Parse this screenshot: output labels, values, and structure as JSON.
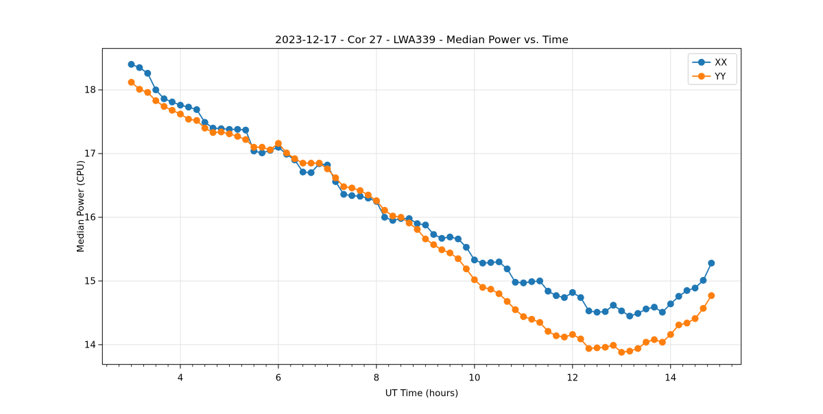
{
  "figure": {
    "background": "#ffffff",
    "grid_color": "#e2e2e2",
    "spine_color": "#000000",
    "text_color": "#000000"
  },
  "chart_data": {
    "type": "line",
    "title": "2023-12-17 - Cor 27 - LWA339 - Median Power vs. Time",
    "xlabel": "UT Time (hours)",
    "ylabel": "Median Power (CPU)",
    "grid": true,
    "legend_position": "upper right",
    "xlim": [
      2.41,
      15.44
    ],
    "ylim": [
      13.69,
      18.65
    ],
    "x_major_ticks": [
      4,
      6,
      8,
      10,
      12,
      14
    ],
    "x_minor_tick_step": 0.25,
    "y_major_ticks": [
      14,
      15,
      16,
      17,
      18
    ],
    "x": [
      3.0,
      3.167,
      3.333,
      3.5,
      3.667,
      3.833,
      4.0,
      4.167,
      4.333,
      4.5,
      4.667,
      4.833,
      5.0,
      5.167,
      5.333,
      5.5,
      5.667,
      5.833,
      6.0,
      6.167,
      6.333,
      6.5,
      6.667,
      6.833,
      7.0,
      7.167,
      7.333,
      7.5,
      7.667,
      7.833,
      8.0,
      8.167,
      8.333,
      8.5,
      8.667,
      8.833,
      9.0,
      9.167,
      9.333,
      9.5,
      9.667,
      9.833,
      10.0,
      10.167,
      10.333,
      10.5,
      10.667,
      10.833,
      11.0,
      11.167,
      11.333,
      11.5,
      11.667,
      11.833,
      12.0,
      12.167,
      12.333,
      12.5,
      12.667,
      12.833,
      13.0,
      13.167,
      13.333,
      13.5,
      13.667,
      13.833,
      14.0,
      14.167,
      14.333,
      14.5,
      14.667,
      14.833
    ],
    "series": [
      {
        "name": "XX",
        "color": "#1f77b4",
        "marker": "circle",
        "values": [
          18.4,
          18.35,
          18.26,
          18.0,
          17.86,
          17.81,
          17.76,
          17.73,
          17.69,
          17.49,
          17.4,
          17.39,
          17.38,
          17.38,
          17.37,
          17.04,
          17.01,
          17.05,
          17.1,
          16.99,
          16.9,
          16.71,
          16.7,
          16.84,
          16.82,
          16.56,
          16.36,
          16.34,
          16.33,
          16.3,
          16.25,
          16.0,
          15.95,
          15.98,
          15.98,
          15.9,
          15.88,
          15.73,
          15.67,
          15.69,
          15.66,
          15.53,
          15.33,
          15.28,
          15.29,
          15.3,
          15.19,
          14.98,
          14.97,
          14.99,
          15.0,
          14.84,
          14.77,
          14.74,
          14.82,
          14.74,
          14.53,
          14.51,
          14.52,
          14.62,
          14.53,
          14.45,
          14.49,
          14.56,
          14.59,
          14.51,
          14.64,
          14.76,
          14.85,
          14.89,
          15.01,
          15.28
        ]
      },
      {
        "name": "YY",
        "color": "#ff7f0e",
        "marker": "circle",
        "values": [
          18.12,
          18.01,
          17.96,
          17.83,
          17.74,
          17.68,
          17.62,
          17.54,
          17.52,
          17.4,
          17.33,
          17.34,
          17.31,
          17.27,
          17.22,
          17.1,
          17.1,
          17.06,
          17.16,
          17.01,
          16.92,
          16.85,
          16.85,
          16.85,
          16.76,
          16.62,
          16.48,
          16.46,
          16.42,
          16.35,
          16.26,
          16.11,
          16.02,
          16.0,
          15.91,
          15.81,
          15.66,
          15.57,
          15.49,
          15.44,
          15.35,
          15.19,
          15.02,
          14.9,
          14.87,
          14.8,
          14.68,
          14.55,
          14.44,
          14.4,
          14.35,
          14.21,
          14.14,
          14.12,
          14.16,
          14.09,
          13.94,
          13.95,
          13.96,
          13.99,
          13.88,
          13.9,
          13.94,
          14.04,
          14.08,
          14.04,
          14.16,
          14.31,
          14.34,
          14.41,
          14.57,
          14.77
        ]
      }
    ],
    "legend_labels": [
      "XX",
      "YY"
    ]
  }
}
